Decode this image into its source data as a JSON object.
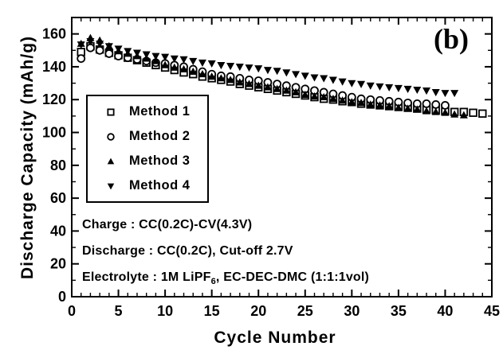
{
  "figure": {
    "panel_label": "(b)",
    "background_color": "#ffffff",
    "ink_color": "#000000"
  },
  "chart_data": {
    "type": "scatter",
    "title": "",
    "xlabel": "Cycle Number",
    "ylabel": "Discharge Capacity (mAh/g)",
    "xlim": [
      0,
      45
    ],
    "ylim": [
      0,
      170
    ],
    "xticks": [
      0,
      5,
      10,
      15,
      20,
      25,
      30,
      35,
      40,
      45
    ],
    "yticks": [
      0,
      20,
      40,
      60,
      80,
      100,
      120,
      140,
      160
    ],
    "x_minor_step": 1,
    "y_minor_step": 10,
    "grid": false,
    "legend_position": "upper-left-inside",
    "series": [
      {
        "name": "Method 1",
        "marker": "open-square",
        "x_start": 1,
        "values": [
          149,
          152.5,
          150.5,
          148.5,
          147,
          145.5,
          144,
          142.5,
          141,
          139.5,
          138,
          136.5,
          135.5,
          134,
          133,
          132,
          131,
          129.5,
          128.5,
          127.5,
          126.5,
          125.5,
          124.5,
          123.5,
          122.5,
          121.5,
          120.5,
          120,
          119,
          118.5,
          117.5,
          117,
          116.5,
          116,
          115.5,
          115,
          114.5,
          114,
          113.5,
          113,
          112.5,
          112.5,
          112,
          111.5
        ]
      },
      {
        "name": "Method 2",
        "marker": "open-circle",
        "x_start": 1,
        "values": [
          145,
          151.5,
          150,
          148,
          146.5,
          145.5,
          144.5,
          143.5,
          142.5,
          142,
          141,
          140,
          138.5,
          137,
          135.5,
          134.5,
          134,
          133,
          132,
          131.5,
          130.5,
          129.5,
          128.5,
          127.5,
          126.5,
          125.5,
          124.5,
          123.5,
          122.5,
          121.5,
          120.5,
          120,
          119.5,
          119,
          118.5,
          118,
          117.5,
          117.5,
          117,
          116.5
        ]
      },
      {
        "name": "Method 3",
        "marker": "filled-triangle-up",
        "x_start": 1,
        "values": [
          154,
          157.5,
          156,
          152.5,
          149.5,
          148,
          146.5,
          145,
          143.5,
          141,
          139.5,
          138.5,
          137,
          135.5,
          134,
          133,
          132,
          130.5,
          129.5,
          128.5,
          127.5,
          126.5,
          125.5,
          124.5,
          123,
          122,
          121.5,
          120.5,
          119.5,
          118.5,
          118,
          117,
          116.5,
          116,
          115,
          114.5,
          114,
          113,
          112.5,
          112,
          111,
          110.5
        ]
      },
      {
        "name": "Method 4",
        "marker": "filled-triangle-down",
        "x_start": 1,
        "values": [
          153.5,
          155.5,
          154,
          152.5,
          151,
          149.5,
          148.5,
          147.5,
          146.5,
          146,
          145,
          144.5,
          143.5,
          142.5,
          142,
          141,
          140.5,
          140,
          139.5,
          139,
          138,
          137.5,
          136.5,
          135.5,
          134.5,
          133.5,
          133,
          132,
          131,
          130,
          129.5,
          128.5,
          128,
          127.5,
          127,
          126.5,
          126,
          125.5,
          124.5,
          124,
          124
        ]
      }
    ]
  },
  "annotations": {
    "charge": "Charge : CC(0.2C)-CV(4.3V)",
    "discharge": "Discharge : CC(0.2C), Cut-off 2.7V",
    "electrolyte_prefix": "Electrolyte : 1M LiPF",
    "electrolyte_sub": "6",
    "electrolyte_suffix": ", EC-DEC-DMC (1:1:1vol)"
  }
}
